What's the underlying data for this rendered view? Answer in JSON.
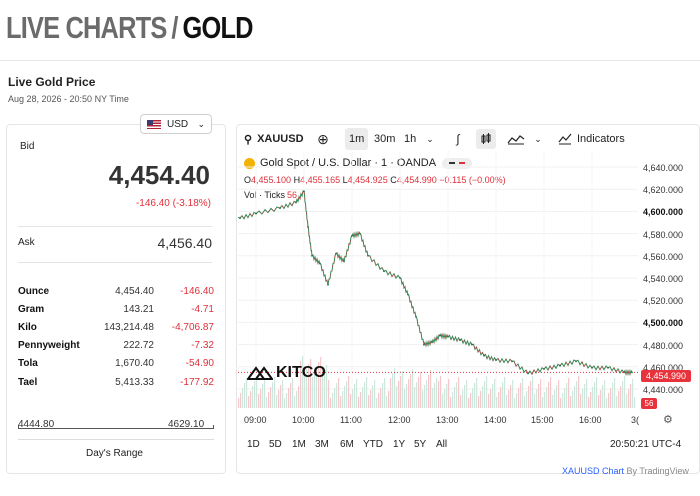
{
  "header": {
    "title_part1": "LIVE CHARTS",
    "separator": "/",
    "title_part2": "GOLD"
  },
  "price_section": {
    "title": "Live Gold Price",
    "timestamp": "Aug 28, 2026 - 20:50 NY Time",
    "currency": "USD",
    "bid_label": "Bid",
    "bid_value": "4,454.40",
    "bid_change": "-146.40 (-3.18%)",
    "ask_label": "Ask",
    "ask_value": "4,456.40",
    "units": [
      {
        "name": "Ounce",
        "price": "4,454.40",
        "change": "-146.40"
      },
      {
        "name": "Gram",
        "price": "143.21",
        "change": "-4.71"
      },
      {
        "name": "Kilo",
        "price": "143,214.48",
        "change": "-4,706.87"
      },
      {
        "name": "Pennyweight",
        "price": "222.72",
        "change": "-7.32"
      },
      {
        "name": "Tola",
        "price": "1,670.40",
        "change": "-54.90"
      },
      {
        "name": "Tael",
        "price": "5,413.33",
        "change": "-177.92"
      }
    ],
    "range_low": "4444.80",
    "range_high": "4629.10",
    "range_label": "Day's Range"
  },
  "chart": {
    "symbol": "XAUUSD",
    "timeframes": [
      "1m",
      "30m",
      "1h"
    ],
    "active_timeframe": "1m",
    "indicators_label": "Indicators",
    "legend": "Gold Spot / U.S. Dollar · 1 · OANDA",
    "ohlc": {
      "o_key": "O",
      "o": "4,455.100",
      "h_key": "H",
      "h": "4,455.165",
      "l_key": "L",
      "l": "4,454.925",
      "c_key": "C",
      "c": "4,454.990",
      "chg": "−0.115 (−0.00%)"
    },
    "vol_label": "Vol · Ticks",
    "vol_value": "56",
    "price_axis": [
      "4,640.000",
      "4,620.000",
      "4,600.000",
      "4,580.000",
      "4,560.000",
      "4,540.000",
      "4,520.000",
      "4,500.000",
      "4,480.000",
      "4,460.000",
      "4,440.000"
    ],
    "current_price": "4,454.990",
    "current_volume": "56",
    "time_axis": [
      "09:00",
      "10:00",
      "11:00",
      "12:00",
      "13:00",
      "14:00",
      "15:00",
      "16:00",
      "3("
    ],
    "range_buttons": [
      "1D",
      "5D",
      "1M",
      "3M",
      "6M",
      "YTD",
      "1Y",
      "5Y",
      "All"
    ],
    "clock": "20:50:21 UTC-4",
    "watermark": "KITCO",
    "attribution_link": "XAUUSD Chart",
    "attribution_suffix": "By TradingView"
  },
  "chart_data": {
    "type": "line",
    "title": "Gold Spot / U.S. Dollar · 1 · OANDA",
    "xlabel": "",
    "ylabel": "",
    "x": [
      "08:00",
      "08:40",
      "09:00",
      "09:30",
      "09:50",
      "10:00",
      "10:05",
      "10:10",
      "10:20",
      "10:30",
      "10:40",
      "10:50",
      "11:00",
      "11:10",
      "11:20",
      "11:40",
      "12:00",
      "12:10",
      "12:20",
      "12:30",
      "12:40",
      "12:50",
      "13:00",
      "13:15",
      "13:30",
      "13:45",
      "14:00",
      "14:20",
      "14:40",
      "15:00",
      "15:20",
      "15:40",
      "16:00",
      "16:20",
      "16:40",
      "16:50"
    ],
    "series": [
      {
        "values": [
          4591,
          4594,
          4598,
          4603,
          4608,
          4618,
          4586,
          4560,
          4553,
          4534,
          4562,
          4555,
          4578,
          4580,
          4560,
          4546,
          4540,
          4525,
          4505,
          4480,
          4482,
          4488,
          4487,
          4484,
          4480,
          4470,
          4466,
          4465,
          4454,
          4458,
          4461,
          4465,
          4459,
          4459,
          4455,
          4455
        ]
      }
    ],
    "ylim": [
      4440,
      4640
    ],
    "grid": true,
    "legend": "none"
  }
}
